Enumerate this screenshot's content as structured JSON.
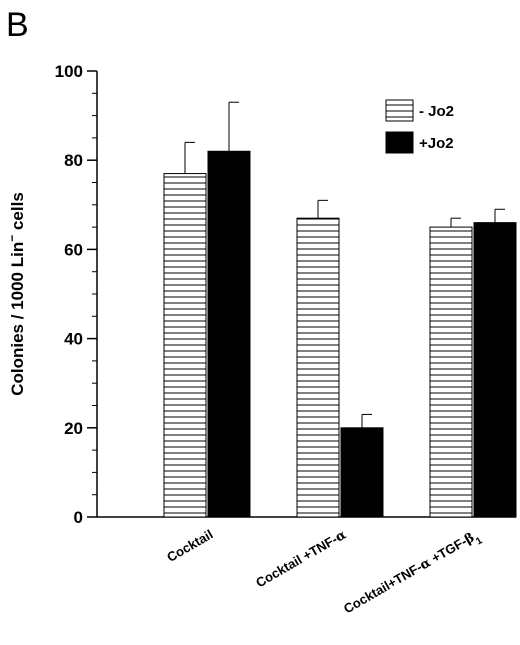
{
  "panel_label": "B",
  "chart_data": {
    "type": "bar",
    "categories": [
      "Cocktail",
      "Cocktail +TNF-α",
      "Cocktail+TNF-α +TGF-β1"
    ],
    "category_parts": [
      [
        {
          "t": "Cocktail"
        }
      ],
      [
        {
          "t": "Cocktail +TNF-"
        },
        {
          "t": "α",
          "greek": true
        }
      ],
      [
        {
          "t": "Cocktail+TNF-"
        },
        {
          "t": "α",
          "greek": true
        },
        {
          "t": " +TGF-"
        },
        {
          "t": "β",
          "greek": true
        },
        {
          "t": "1",
          "sub": true
        }
      ]
    ],
    "series": [
      {
        "name": "- Jo2",
        "values": [
          77,
          67,
          65
        ],
        "errors": [
          7,
          4,
          2
        ],
        "fill": "hatched"
      },
      {
        "name": "+Jo2",
        "values": [
          82,
          20,
          66
        ],
        "errors": [
          11,
          3,
          3
        ],
        "fill": "solid"
      }
    ],
    "ylabel": "Colonies / 1000 Lin⁻ cells",
    "ylabel_parts": [
      {
        "t": "Colonies / 1000 Lin"
      },
      {
        "t": "−",
        "sup": true
      },
      {
        "t": " cells"
      }
    ],
    "ylim": [
      0,
      100
    ],
    "yticks": [
      0,
      20,
      40,
      60,
      80,
      100
    ],
    "legend_position": "top-right",
    "grid": false,
    "colors": {
      "solid": "#000000",
      "hatch_line": "#000000",
      "background": "#ffffff"
    }
  }
}
